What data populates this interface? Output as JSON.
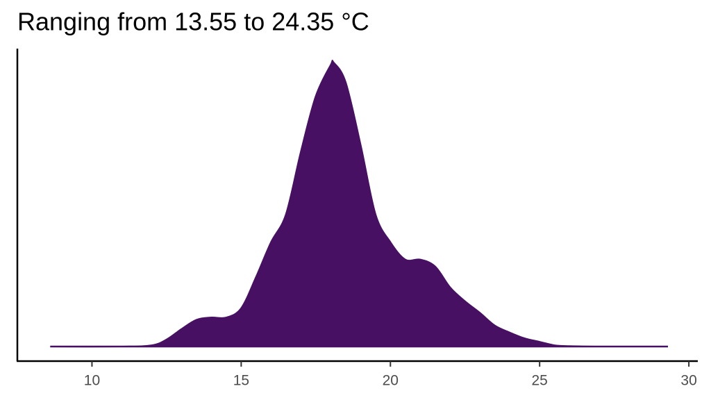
{
  "chart_data": {
    "type": "density",
    "title": "Ranging from 13.55 to 24.35 °C",
    "color": "#471063",
    "x": [
      8.6,
      11,
      12,
      12.5,
      13,
      13.5,
      14,
      14.5,
      15,
      15.5,
      16,
      16.5,
      17,
      17.5,
      18,
      18.1,
      18.5,
      19,
      19.5,
      20,
      20.5,
      21,
      21.5,
      22,
      22.5,
      23,
      23.5,
      24,
      24.5,
      25,
      25.5,
      26,
      27,
      29.3
    ],
    "values": [
      0,
      0,
      0.001,
      0.006,
      0.015,
      0.023,
      0.025,
      0.025,
      0.033,
      0.06,
      0.09,
      0.114,
      0.168,
      0.216,
      0.243,
      0.245,
      0.228,
      0.174,
      0.114,
      0.09,
      0.075,
      0.075,
      0.069,
      0.051,
      0.039,
      0.029,
      0.018,
      0.012,
      0.007,
      0.004,
      0.001,
      0.0003,
      0,
      0
    ],
    "xlim": [
      7.5,
      30.3
    ],
    "xticks": [
      10,
      15,
      20,
      25,
      30
    ],
    "ylim": [
      0,
      0.25
    ]
  }
}
